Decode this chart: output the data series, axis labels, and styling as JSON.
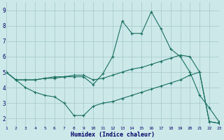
{
  "background_color": "#cce8e8",
  "grid_color": "#aacccc",
  "line_color": "#1a7060",
  "xlabel": "Humidex (Indice chaleur)",
  "xlim": [
    1,
    23
  ],
  "ylim": [
    1.5,
    9.5
  ],
  "xticks": [
    1,
    2,
    3,
    4,
    5,
    6,
    7,
    8,
    9,
    10,
    11,
    12,
    13,
    14,
    15,
    16,
    17,
    18,
    19,
    20,
    21,
    22,
    23
  ],
  "yticks": [
    2,
    3,
    4,
    5,
    6,
    7,
    8,
    9
  ],
  "line1_x": [
    1,
    2,
    3,
    4,
    5,
    6,
    7,
    8,
    9,
    10,
    11,
    12,
    13,
    14,
    15,
    16,
    17,
    18,
    19,
    20,
    21,
    22,
    23
  ],
  "line1_y": [
    5.0,
    4.5,
    4.5,
    4.5,
    4.6,
    4.6,
    4.7,
    4.7,
    4.7,
    4.2,
    4.9,
    6.0,
    8.3,
    7.5,
    7.5,
    8.9,
    7.8,
    6.5,
    6.0,
    5.0,
    3.5,
    2.7,
    1.8
  ],
  "line2_x": [
    1,
    2,
    3,
    4,
    5,
    6,
    7,
    8,
    9,
    10,
    11,
    12,
    13,
    14,
    15,
    16,
    17,
    18,
    19,
    20,
    21,
    22,
    23
  ],
  "line2_y": [
    5.0,
    4.5,
    4.5,
    4.5,
    4.6,
    4.7,
    4.7,
    4.8,
    4.8,
    4.5,
    4.6,
    4.8,
    5.0,
    5.2,
    5.3,
    5.5,
    5.7,
    5.9,
    6.1,
    6.0,
    5.0,
    1.8,
    1.7
  ],
  "line3_x": [
    1,
    2,
    3,
    4,
    5,
    6,
    7,
    8,
    9,
    10,
    11,
    12,
    13,
    14,
    15,
    16,
    17,
    18,
    19,
    20,
    21,
    22,
    23
  ],
  "line3_y": [
    5.0,
    4.5,
    4.0,
    3.7,
    3.5,
    3.4,
    3.0,
    2.2,
    2.2,
    2.8,
    3.0,
    3.1,
    3.3,
    3.5,
    3.7,
    3.9,
    4.1,
    4.3,
    4.5,
    4.8,
    5.0,
    1.8,
    1.7
  ]
}
